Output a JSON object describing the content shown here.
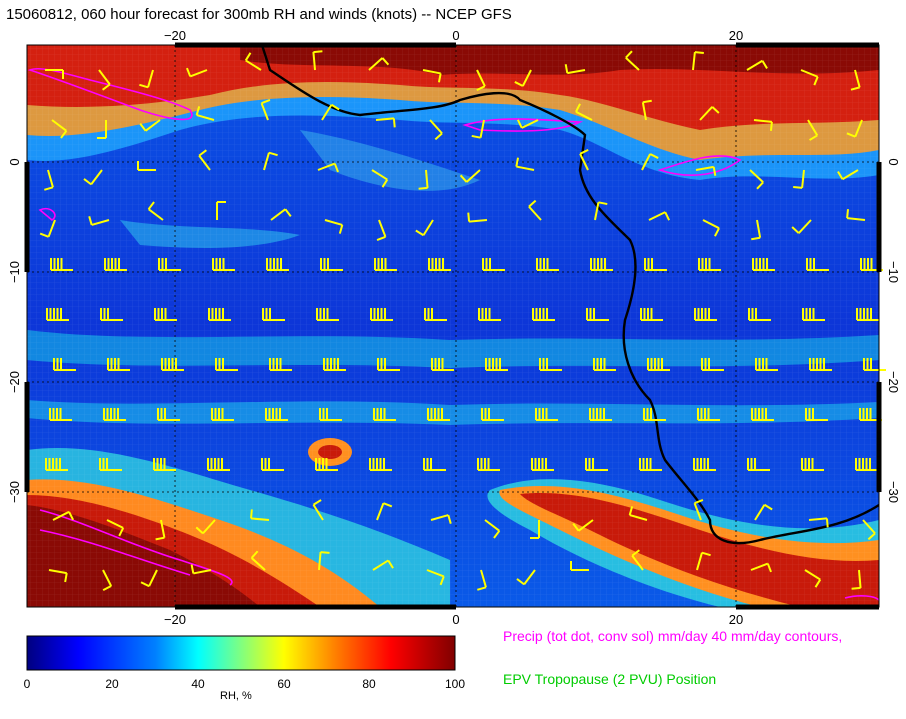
{
  "title": "15060812, 060 hour forecast for 300mb RH and winds (knots) -- NCEP GFS",
  "map": {
    "lon_top_labels": [
      "−20",
      "0",
      "20"
    ],
    "lon_bottom_labels": [
      "−20",
      "0",
      "20"
    ],
    "lat_left_labels": [
      "0",
      "−10",
      "−20",
      "−30"
    ],
    "lat_right_labels": [
      "0",
      "−10",
      "−20",
      "−30"
    ],
    "frame_color": "#000000",
    "barb_color": "#ffff00",
    "precip_contour_color": "#ff00ff",
    "tropopause_line_color": "#000000"
  },
  "colorbar": {
    "ticks": [
      "0",
      "20",
      "40",
      "60",
      "80",
      "100"
    ],
    "label": "RH, %",
    "colors": [
      "#000080",
      "#0000ff",
      "#0080ff",
      "#00ffff",
      "#80ff80",
      "#ffff00",
      "#ff8000",
      "#ff0000",
      "#800000"
    ]
  },
  "legend": {
    "precip": "Precip (tot dot, conv sol) mm/day 40 mm/day contours,",
    "tropopause": "EPV Tropopause (2 PVU) Position"
  }
}
